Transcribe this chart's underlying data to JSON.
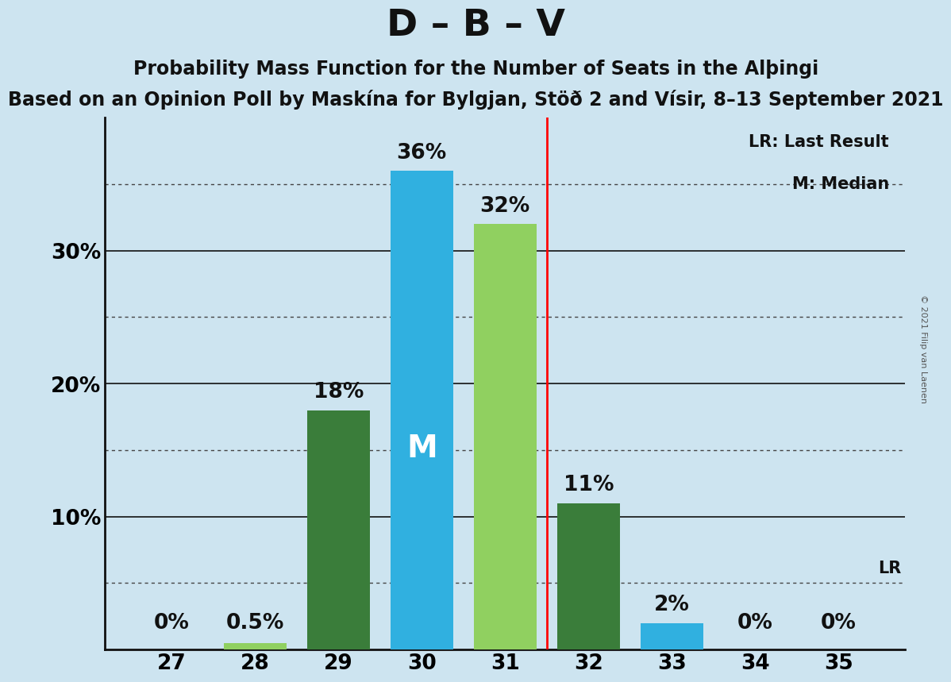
{
  "title": "D – B – V",
  "subtitle1": "Probability Mass Function for the Number of Seats in the Alþingi",
  "subtitle2": "Based on an Opinion Poll by Maskína for Bylgjan, Stöð 2 and Vísir, 8–13 September 2021",
  "copyright": "© 2021 Filip van Laenen",
  "seats": [
    27,
    28,
    29,
    30,
    31,
    32,
    33,
    34,
    35
  ],
  "values": [
    0.0,
    0.5,
    18.0,
    36.0,
    32.0,
    11.0,
    2.0,
    0.0,
    0.0
  ],
  "bar_colors": [
    "#3a7d3a",
    "#90d060",
    "#3a7d3a",
    "#30b0e0",
    "#90d060",
    "#3a7d3a",
    "#30b0e0",
    "#3a7d3a",
    "#90d060"
  ],
  "bar_labels": [
    "0%",
    "0.5%",
    "18%",
    "36%",
    "32%",
    "11%",
    "2%",
    "0%",
    "0%"
  ],
  "show_label": [
    true,
    true,
    true,
    true,
    true,
    true,
    true,
    true,
    true
  ],
  "median_seat": 30,
  "median_label": "M",
  "lr_line_x": 31.5,
  "ylim_max": 40,
  "yticks": [
    10,
    20,
    30
  ],
  "ytick_labels": [
    "10%",
    "20%",
    "30%"
  ],
  "dotted_lines": [
    5,
    15,
    25,
    35
  ],
  "solid_lines": [
    10,
    20,
    30
  ],
  "xlim_min": 26.2,
  "xlim_max": 35.8,
  "background_color": "#cde4f0",
  "grid_solid_color": "#111111",
  "grid_dotted_color": "#444444",
  "lr_legend": "LR: Last Result",
  "m_legend": "M: Median",
  "lr_bottom_label": "LR",
  "title_fontsize": 34,
  "subtitle1_fontsize": 17,
  "subtitle2_fontsize": 17,
  "bar_label_fontsize": 19,
  "axis_tick_fontsize": 19,
  "legend_fontsize": 15,
  "lr_bottom_fontsize": 15,
  "median_fontsize": 28,
  "copyright_fontsize": 8
}
